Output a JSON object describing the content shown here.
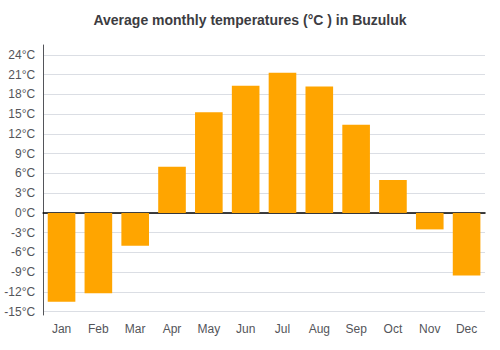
{
  "chart_data": {
    "type": "bar",
    "title": "Average monthly temperatures (°C ) in Buzuluk",
    "categories": [
      "Jan",
      "Feb",
      "Mar",
      "Apr",
      "May",
      "Jun",
      "Jul",
      "Aug",
      "Sep",
      "Oct",
      "Nov",
      "Dec"
    ],
    "values": [
      -13.5,
      -12.2,
      -5.0,
      7.0,
      15.3,
      19.3,
      21.3,
      19.2,
      13.4,
      5.0,
      -2.5,
      -9.5
    ],
    "color": "#FFA500",
    "ylim": [
      -15.5,
      25.5
    ],
    "yticks": [
      {
        "value": -15,
        "label": "-15°C"
      },
      {
        "value": -12,
        "label": "-12°C"
      },
      {
        "value": -9,
        "label": "-9°C"
      },
      {
        "value": -6,
        "label": "-6°C"
      },
      {
        "value": -3,
        "label": "-3°C"
      },
      {
        "value": 0,
        "label": "0°C"
      },
      {
        "value": 3,
        "label": "3°C"
      },
      {
        "value": 6,
        "label": "6°C"
      },
      {
        "value": 9,
        "label": "9°C"
      },
      {
        "value": 12,
        "label": "12°C"
      },
      {
        "value": 15,
        "label": "15°C"
      },
      {
        "value": 18,
        "label": "18°C"
      },
      {
        "value": 21,
        "label": "21°C"
      },
      {
        "value": 24,
        "label": "24°C"
      }
    ],
    "grid": true
  }
}
